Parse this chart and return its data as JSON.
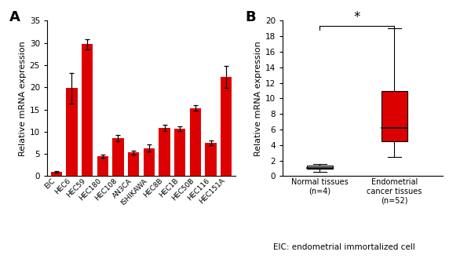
{
  "panel_a": {
    "categories": [
      "EIC",
      "HEC6",
      "HEC59",
      "HEC180",
      "HEC108",
      "AN3CA",
      "ISHIKAWA",
      "HEC8B",
      "HEC1B",
      "HEC50B",
      "HEC116",
      "HEC151A"
    ],
    "values": [
      1.0,
      19.8,
      29.7,
      4.5,
      8.6,
      5.3,
      6.3,
      10.9,
      10.7,
      15.3,
      7.5,
      22.3
    ],
    "errors": [
      0.2,
      3.5,
      1.2,
      0.4,
      0.7,
      0.5,
      0.8,
      0.7,
      0.5,
      0.6,
      0.6,
      2.5
    ],
    "bar_color": "#DD0000",
    "ylabel": "Relative mRNA expression",
    "ylim": [
      0,
      35
    ],
    "yticks": [
      0,
      5,
      10,
      15,
      20,
      25,
      30,
      35
    ]
  },
  "panel_b": {
    "box1": {
      "median": 1.1,
      "q1": 0.9,
      "q3": 1.35,
      "whisker_low": 0.55,
      "whisker_high": 1.6,
      "color": "#BBBBBB",
      "label": "Normal tissues\n(n=4)"
    },
    "box2": {
      "median": 6.2,
      "q1": 4.5,
      "q3": 11.0,
      "whisker_low": 2.5,
      "whisker_high": 19.0,
      "color": "#DD0000",
      "label": "Endometrial\ncancer tissues\n(n=52)"
    },
    "ylabel": "Relative mRNA expression",
    "ylim": [
      0,
      20
    ],
    "yticks": [
      0,
      2,
      4,
      6,
      8,
      10,
      12,
      14,
      16,
      18,
      20
    ],
    "significance": "*"
  },
  "footnote": "EIC: endometrial immortalized cell",
  "bg_color": "#FFFFFF"
}
